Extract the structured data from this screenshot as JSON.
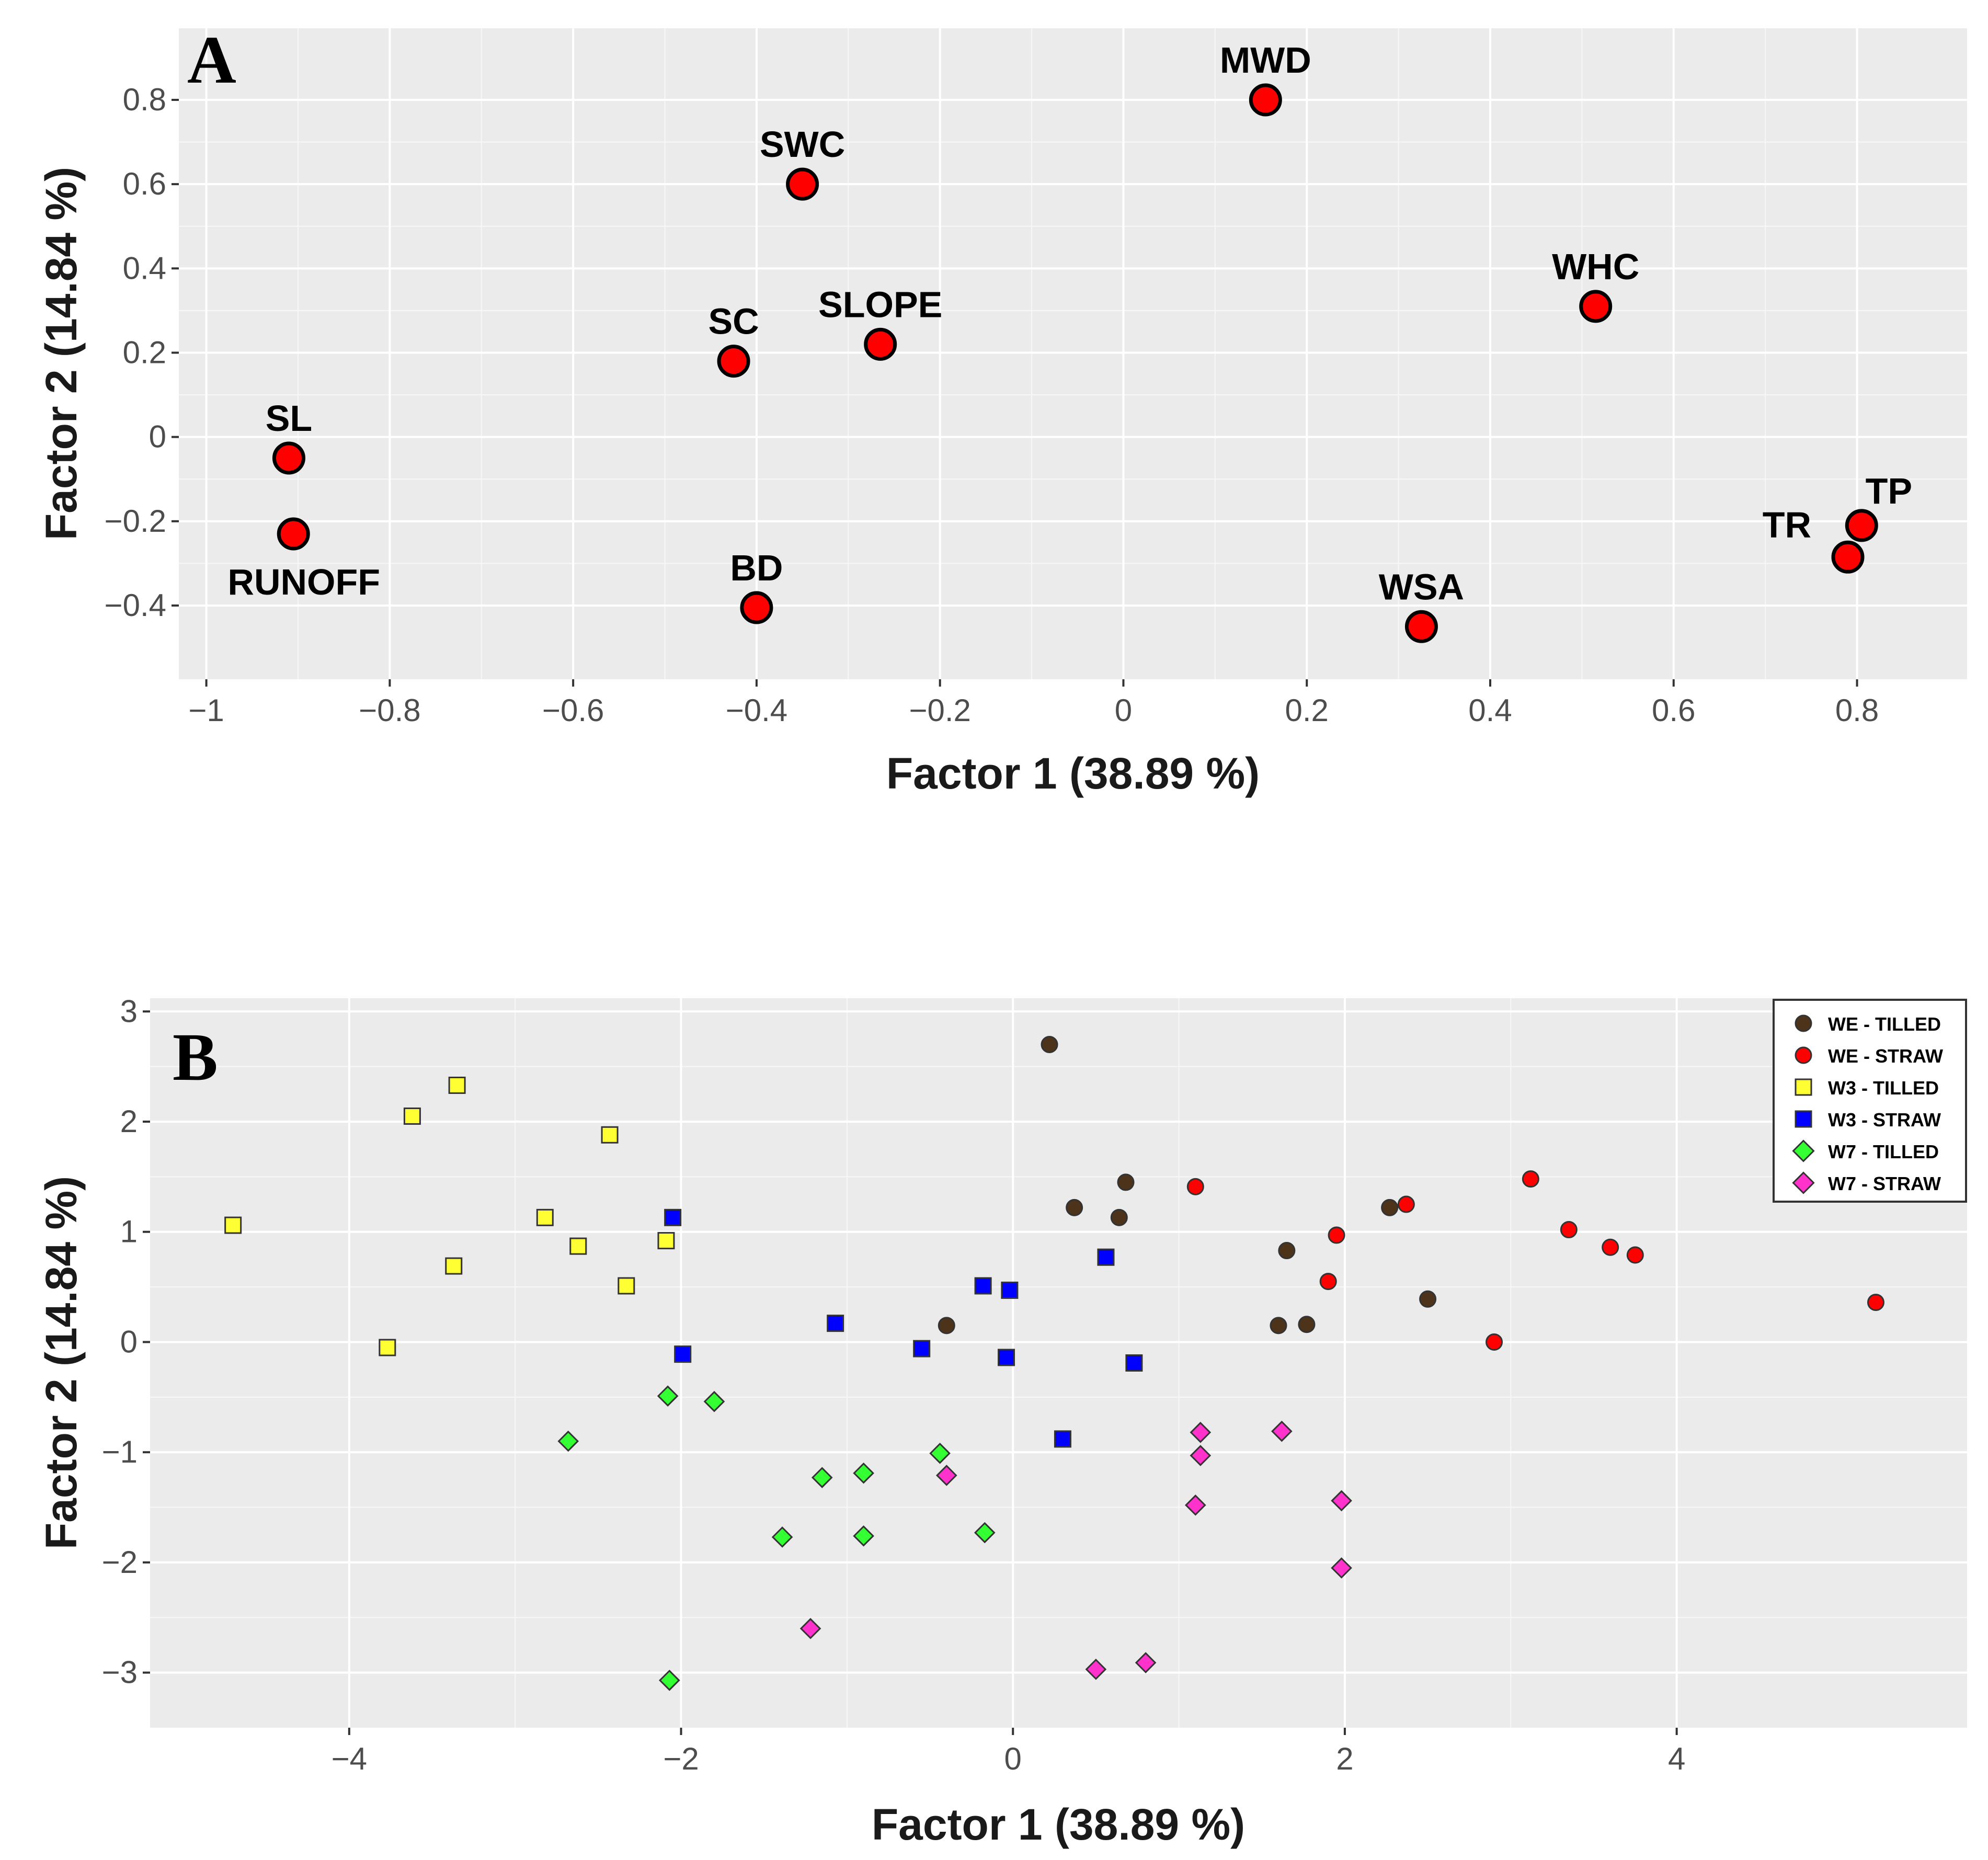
{
  "chart_data": [
    {
      "panel": "A",
      "type": "scatter",
      "title": "",
      "xlabel": "Factor 1 (38.89 %)",
      "ylabel": "Factor 2 (14.84 %)",
      "xlim": [
        -1.03,
        0.92
      ],
      "ylim": [
        -0.575,
        0.97
      ],
      "xticks": [
        -1,
        -0.8,
        -0.6,
        -0.4,
        -0.2,
        0,
        0.2,
        0.4,
        0.6,
        0.8
      ],
      "xtick_labels": [
        "−1",
        "−0.8",
        "−0.6",
        "−0.4",
        "−0.2",
        "0",
        "0.2",
        "0.4",
        "0.6",
        "0.8"
      ],
      "yticks": [
        0.8,
        0.6,
        0.4,
        0.2,
        0,
        -0.2,
        -0.4
      ],
      "ytick_labels": [
        "0.8",
        "0.6",
        "0.4",
        "0.2",
        "0",
        "−0.2",
        "−0.4"
      ],
      "grid": true,
      "marker_color": "#ff0000",
      "points": [
        {
          "label": "MWD",
          "x": 0.155,
          "y": 0.8,
          "label_pos": "above"
        },
        {
          "label": "SWC",
          "x": -0.35,
          "y": 0.6,
          "label_pos": "above"
        },
        {
          "label": "WHC",
          "x": 0.515,
          "y": 0.31,
          "label_pos": "above"
        },
        {
          "label": "SC",
          "x": -0.425,
          "y": 0.18,
          "label_pos": "above"
        },
        {
          "label": "SLOPE",
          "x": -0.265,
          "y": 0.22,
          "label_pos": "above"
        },
        {
          "label": "SL",
          "x": -0.91,
          "y": -0.05,
          "label_pos": "above"
        },
        {
          "label": "RUNOFF",
          "x": -0.905,
          "y": -0.23,
          "label_pos": "below"
        },
        {
          "label": "BD",
          "x": -0.4,
          "y": -0.405,
          "label_pos": "above"
        },
        {
          "label": "WSA",
          "x": 0.325,
          "y": -0.45,
          "label_pos": "above"
        },
        {
          "label": "TP",
          "x": 0.805,
          "y": -0.21,
          "label_pos": "above-right"
        },
        {
          "label": "TR",
          "x": 0.79,
          "y": -0.285,
          "label_pos": "left"
        }
      ]
    },
    {
      "panel": "B",
      "type": "scatter",
      "title": "",
      "xlabel": "Factor 1 (38.89 %)",
      "ylabel": "Factor 2 (14.84 %)",
      "xlim": [
        -5.2,
        5.75
      ],
      "ylim": [
        -3.5,
        3.12
      ],
      "xticks": [
        -4,
        -2,
        0,
        2,
        4
      ],
      "xtick_labels": [
        "−4",
        "−2",
        "0",
        "2",
        "4"
      ],
      "yticks": [
        3,
        2,
        1,
        0,
        -1,
        -2,
        -3
      ],
      "ytick_labels": [
        "3",
        "2",
        "1",
        "0",
        "−1",
        "−2",
        "−3"
      ],
      "grid": true,
      "legend_position": "top-right",
      "series": [
        {
          "name": "WE - TILLED",
          "shape": "circle",
          "color": "#4d3319",
          "points": [
            [
              0.22,
              2.7
            ],
            [
              0.68,
              1.45
            ],
            [
              0.37,
              1.22
            ],
            [
              0.64,
              1.13
            ],
            [
              -0.4,
              0.15
            ],
            [
              1.65,
              0.83
            ],
            [
              1.6,
              0.15
            ],
            [
              1.77,
              0.16
            ],
            [
              2.27,
              1.22
            ],
            [
              2.5,
              0.39
            ]
          ]
        },
        {
          "name": "WE - STRAW",
          "shape": "circle",
          "color": "#ff0000",
          "points": [
            [
              1.1,
              1.41
            ],
            [
              1.95,
              0.97
            ],
            [
              2.37,
              1.25
            ],
            [
              1.9,
              0.55
            ],
            [
              2.9,
              0.0
            ],
            [
              3.12,
              1.48
            ],
            [
              3.35,
              1.02
            ],
            [
              3.6,
              0.86
            ],
            [
              3.75,
              0.79
            ],
            [
              5.2,
              0.36
            ]
          ]
        },
        {
          "name": "W3 - TILLED",
          "shape": "square",
          "color": "#ffff33",
          "points": [
            [
              -4.7,
              1.06
            ],
            [
              -3.62,
              2.05
            ],
            [
              -3.35,
              2.33
            ],
            [
              -2.43,
              1.88
            ],
            [
              -2.82,
              1.13
            ],
            [
              -2.62,
              0.87
            ],
            [
              -3.37,
              0.69
            ],
            [
              -2.09,
              0.92
            ],
            [
              -2.33,
              0.51
            ],
            [
              -3.77,
              -0.05
            ]
          ]
        },
        {
          "name": "W3 - STRAW",
          "shape": "square",
          "color": "#0000ff",
          "points": [
            [
              -2.05,
              1.13
            ],
            [
              -1.07,
              0.17
            ],
            [
              -1.99,
              -0.11
            ],
            [
              -0.55,
              -0.06
            ],
            [
              -0.18,
              0.51
            ],
            [
              -0.02,
              0.47
            ],
            [
              -0.04,
              -0.14
            ],
            [
              0.56,
              0.77
            ],
            [
              0.73,
              -0.19
            ],
            [
              0.3,
              -0.88
            ]
          ]
        },
        {
          "name": "W7 - TILLED",
          "shape": "diamond",
          "color": "#33ff33",
          "points": [
            [
              -2.08,
              -0.49
            ],
            [
              -1.8,
              -0.54
            ],
            [
              -2.68,
              -0.9
            ],
            [
              -1.15,
              -1.23
            ],
            [
              -0.9,
              -1.19
            ],
            [
              -0.44,
              -1.01
            ],
            [
              -1.39,
              -1.77
            ],
            [
              -0.9,
              -1.76
            ],
            [
              -0.17,
              -1.73
            ],
            [
              -2.07,
              -3.07
            ]
          ]
        },
        {
          "name": "W7 - STRAW",
          "shape": "diamond",
          "color": "#ff33cc",
          "points": [
            [
              -0.4,
              -1.21
            ],
            [
              1.13,
              -0.82
            ],
            [
              1.13,
              -1.03
            ],
            [
              1.62,
              -0.81
            ],
            [
              1.1,
              -1.48
            ],
            [
              1.98,
              -1.44
            ],
            [
              1.98,
              -2.05
            ],
            [
              -1.22,
              -2.6
            ],
            [
              0.5,
              -2.97
            ],
            [
              0.8,
              -2.91
            ]
          ]
        }
      ]
    }
  ],
  "panel_a": {
    "letter": "A"
  },
  "panel_b": {
    "letter": "B"
  }
}
